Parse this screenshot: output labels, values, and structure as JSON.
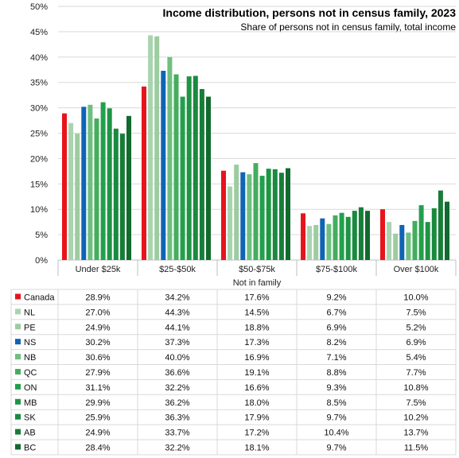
{
  "chart_data": {
    "type": "bar",
    "title": "Income distribution,  persons not in census family, 2023",
    "subtitle": "Share of persons not in census family,  total income",
    "xlabel": "Not in family",
    "ylim": [
      0,
      50
    ],
    "y_ticks": [
      "0%",
      "5%",
      "10%",
      "15%",
      "20%",
      "25%",
      "30%",
      "35%",
      "40%",
      "45%",
      "50%"
    ],
    "grid": true,
    "legend": "table-below",
    "categories": [
      "Under $25k",
      "$25-$50k",
      "$50-$75k",
      "$75-$100k",
      "Over $100k"
    ],
    "series": [
      {
        "name": "Canada",
        "color": "#e8141c",
        "values": [
          28.9,
          34.2,
          17.6,
          9.2,
          10.0
        ],
        "labels": [
          "28.9%",
          "34.2%",
          "17.6%",
          "9.2%",
          "10.0%"
        ]
      },
      {
        "name": "NL",
        "color": "#a9d4b0",
        "values": [
          27.0,
          44.3,
          14.5,
          6.7,
          7.5
        ],
        "labels": [
          "27.0%",
          "44.3%",
          "14.5%",
          "6.7%",
          "7.5%"
        ]
      },
      {
        "name": "PE",
        "color": "#9ccc9f",
        "values": [
          24.9,
          44.1,
          18.8,
          6.9,
          5.2
        ],
        "labels": [
          "24.9%",
          "44.1%",
          "18.8%",
          "6.9%",
          "5.2%"
        ]
      },
      {
        "name": "NS",
        "color": "#0f64b4",
        "values": [
          30.2,
          37.3,
          17.3,
          8.2,
          6.9
        ],
        "labels": [
          "30.2%",
          "37.3%",
          "17.3%",
          "8.2%",
          "6.9%"
        ]
      },
      {
        "name": "NB",
        "color": "#6fbf7e",
        "values": [
          30.6,
          40.0,
          16.9,
          7.1,
          5.4
        ],
        "labels": [
          "30.6%",
          "40.0%",
          "16.9%",
          "7.1%",
          "5.4%"
        ]
      },
      {
        "name": "QC",
        "color": "#45ad5e",
        "values": [
          27.9,
          36.6,
          19.1,
          8.8,
          7.7
        ],
        "labels": [
          "27.9%",
          "36.6%",
          "19.1%",
          "8.8%",
          "7.7%"
        ]
      },
      {
        "name": "ON",
        "color": "#22a04c",
        "values": [
          31.1,
          32.2,
          16.6,
          9.3,
          10.8
        ],
        "labels": [
          "31.1%",
          "32.2%",
          "16.6%",
          "9.3%",
          "10.8%"
        ]
      },
      {
        "name": "MB",
        "color": "#1f9444",
        "values": [
          29.9,
          36.2,
          18.0,
          8.5,
          7.5
        ],
        "labels": [
          "29.9%",
          "36.2%",
          "18.0%",
          "8.5%",
          "7.5%"
        ]
      },
      {
        "name": "SK",
        "color": "#1a8a3f",
        "values": [
          25.9,
          36.3,
          17.9,
          9.7,
          10.2
        ],
        "labels": [
          "25.9%",
          "36.3%",
          "17.9%",
          "9.7%",
          "10.2%"
        ]
      },
      {
        "name": "AB",
        "color": "#177d39",
        "values": [
          24.9,
          33.7,
          17.2,
          10.4,
          13.7
        ],
        "labels": [
          "24.9%",
          "33.7%",
          "17.2%",
          "10.4%",
          "13.7%"
        ]
      },
      {
        "name": "BC",
        "color": "#116a2e",
        "values": [
          28.4,
          32.2,
          18.1,
          9.7,
          11.5
        ],
        "labels": [
          "28.4%",
          "32.2%",
          "18.1%",
          "9.7%",
          "11.5%"
        ]
      }
    ]
  }
}
